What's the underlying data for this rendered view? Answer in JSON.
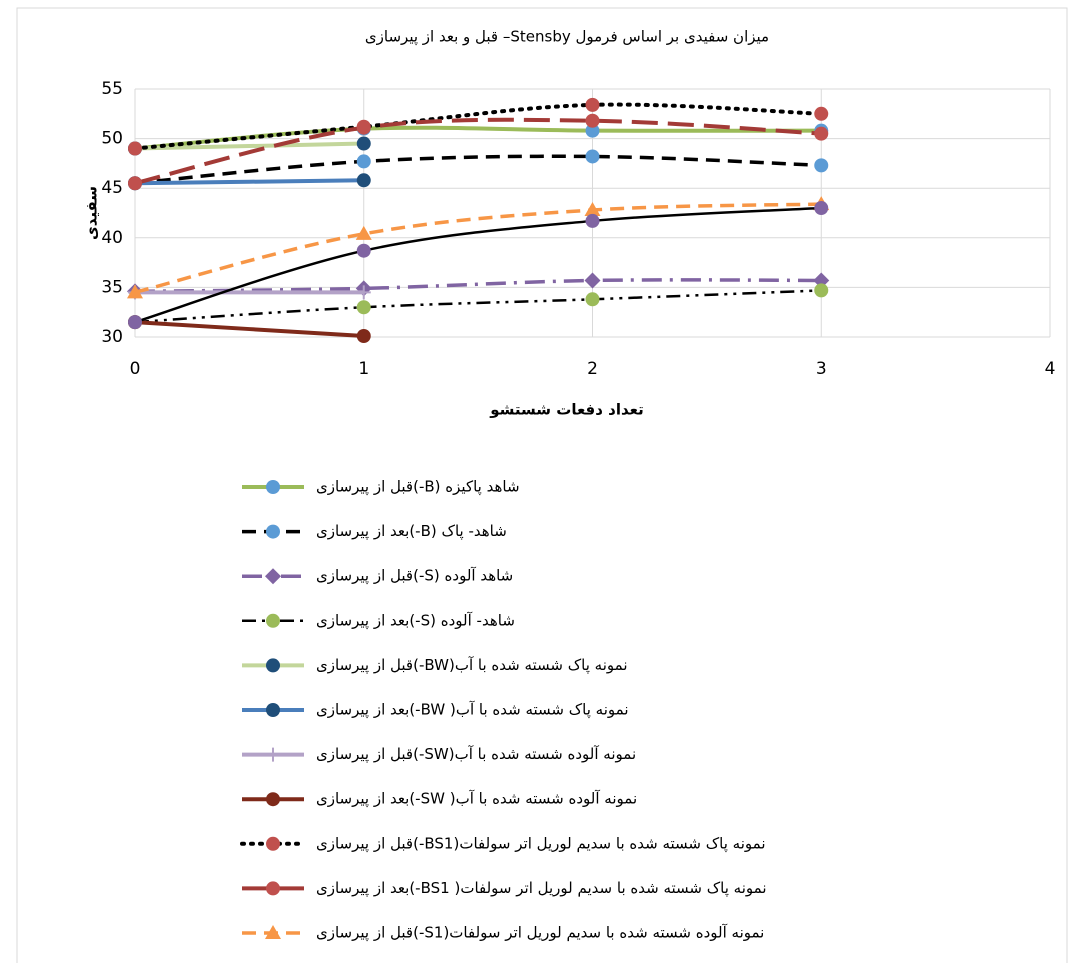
{
  "chart_data": {
    "type": "line",
    "title": "میزان سفیدی بر اساس فرمول Stensby– قبل و بعد از پیرسازی",
    "x_label": "تعداد دفعات شستشو",
    "y_label": "سفیدی",
    "x": [
      0,
      1,
      2,
      3
    ],
    "xlim": [
      0,
      4
    ],
    "xticks": [
      0,
      1,
      2,
      3,
      4
    ],
    "ylim": [
      30,
      55
    ],
    "yticks": [
      30,
      35,
      40,
      45,
      50,
      55
    ],
    "grid": true,
    "series": [
      {
        "name": "شاهد پاکیزه (B-)قبل از پیرسازی",
        "color": "#9bbb59",
        "marker_color": "#5b9bd5",
        "marker": "circle",
        "line_style": "solid",
        "values": [
          49,
          51,
          50.8,
          50.8
        ]
      },
      {
        "name": "شاهد- پاک (B-)بعد از پیرسازی",
        "color": "#000000",
        "marker_color": "#5b9bd5",
        "marker": "circle",
        "line_style": "dash",
        "values": [
          45.5,
          47.7,
          48.2,
          47.3
        ]
      },
      {
        "name": "شاهد آلوده (S-)قبل از پیرسازی",
        "color": "#8064a2",
        "marker_color": "#8064a2",
        "marker": "diamond",
        "line_style": "dashdot",
        "values": [
          34.6,
          34.9,
          35.7,
          35.7
        ]
      },
      {
        "name": "شاهد- آلوده (S-)بعد از پیرسازی",
        "color": "#000000",
        "marker_color": "#9bbb59",
        "marker": "circle",
        "line_style": "dashdotdot",
        "values": [
          31.5,
          33,
          33.8,
          34.7
        ]
      },
      {
        "name": "نمونه پاک شسته شده با آب(BW-)قبل از پیرسازی",
        "color": "#c3d69b",
        "marker_color": "#1f4e79",
        "marker": "circle",
        "line_style": "solid",
        "values": [
          49,
          49.5,
          null,
          null
        ]
      },
      {
        "name": "نمونه پاک شسته شده با آب( BW-)بعد از پیرسازی",
        "color": "#4a7ebb",
        "marker_color": "#1f4e79",
        "marker": "circle",
        "line_style": "solid",
        "values": [
          45.5,
          45.8,
          null,
          null
        ]
      },
      {
        "name": "نمونه آلوده شسته شده با آب(SW-)قبل از پیرسازی",
        "color": "#b3a2c7",
        "marker_color": "#b3a2c7",
        "marker": "plus",
        "line_style": "solid",
        "values": [
          34.5,
          34.5,
          null,
          null
        ]
      },
      {
        "name": "نمونه آلوده شسته شده با آب( SW-)بعد از پیرسازی",
        "color": "#7f2a1a",
        "marker_color": "#7f2a1a",
        "marker": "circle",
        "line_style": "solid",
        "values": [
          31.5,
          30.1,
          null,
          null
        ]
      },
      {
        "name": "نمونه پاک شسته شده با سدیم لوریل اتر سولفات(BS1-)قبل از پیرسازی",
        "color": "#000000",
        "marker_color": "#c0504d",
        "marker": "circle",
        "line_style": "dot",
        "values": [
          49,
          51.2,
          53.4,
          52.5
        ]
      },
      {
        "name": "نمونه پاک شسته شده با سدیم لوریل اتر سولفات( BS1-)بعد از پیرسازی",
        "color": "#a33a36",
        "marker_color": "#c0504d",
        "marker": "circle",
        "line_style": "longdash",
        "values": [
          45.5,
          51.1,
          51.8,
          50.5
        ]
      },
      {
        "name": "نمونه آلوده شسته شده با سدیم لوریل اتر سولفات(S1-)قبل از پیرسازی",
        "color": "#f79646",
        "marker_color": "#f79646",
        "marker": "triangle",
        "line_style": "dash",
        "values": [
          34.5,
          40.4,
          42.8,
          43.4
        ]
      },
      {
        "color": "#000000",
        "marker_color": "#8064a2",
        "marker": "circle",
        "line_style": "thin",
        "values": [
          31.5,
          38.7,
          41.7,
          43
        ]
      }
    ]
  }
}
